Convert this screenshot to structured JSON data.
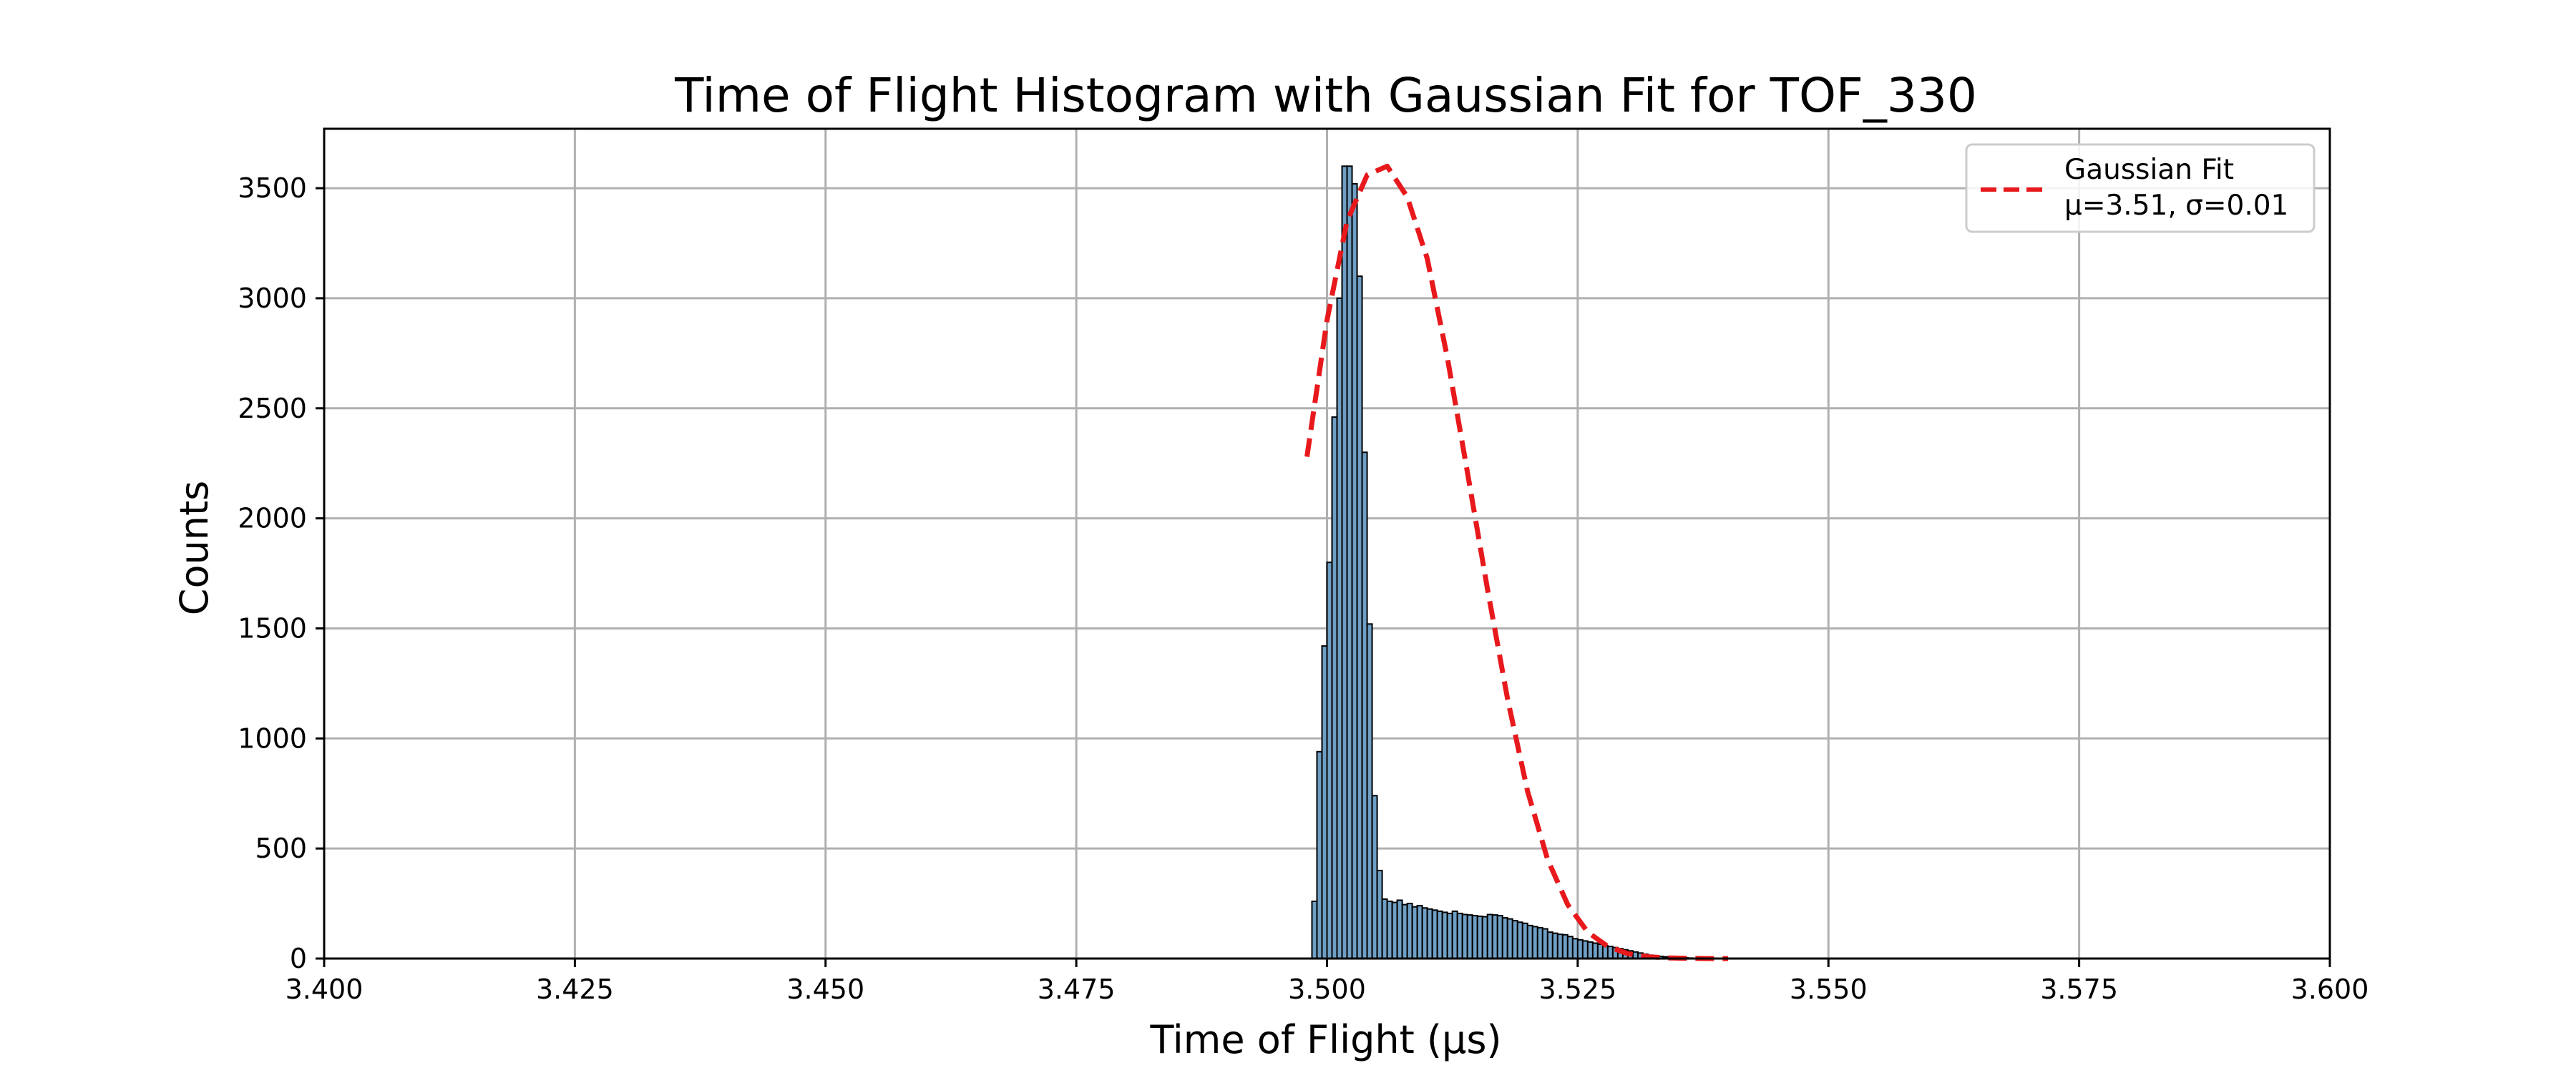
{
  "chart_data": {
    "type": "bar",
    "title": "Time of Flight Histogram with Gaussian Fit for TOF_330",
    "xlabel": "Time of Flight (μs)",
    "ylabel": "Counts",
    "xlim": [
      3.4,
      3.6
    ],
    "ylim": [
      0,
      3770
    ],
    "x_ticks": [
      "3.400",
      "3.425",
      "3.450",
      "3.475",
      "3.500",
      "3.525",
      "3.550",
      "3.575",
      "3.600"
    ],
    "y_ticks": [
      "0",
      "500",
      "1000",
      "1500",
      "2000",
      "2500",
      "3000",
      "3500"
    ],
    "grid": true,
    "legend_position": "top-right",
    "colors": {
      "bar_fill": "#6f9fc4",
      "bar_edge": "#000000",
      "fit_line": "#e8191c",
      "grid": "#b0b0b0"
    },
    "histogram": {
      "bin_width": 0.0005,
      "bin_start": 3.4985,
      "counts": [
        260,
        940,
        1420,
        1800,
        2460,
        3000,
        3600,
        3600,
        3520,
        3100,
        2300,
        1520,
        740,
        400,
        270,
        260,
        255,
        265,
        245,
        250,
        235,
        240,
        230,
        225,
        220,
        215,
        210,
        205,
        215,
        205,
        200,
        198,
        195,
        192,
        190,
        200,
        198,
        195,
        185,
        180,
        172,
        165,
        160,
        150,
        145,
        140,
        135,
        120,
        115,
        110,
        108,
        100,
        90,
        85,
        80,
        75,
        70,
        65,
        58,
        55,
        50,
        45,
        40,
        35,
        30,
        25,
        20,
        15,
        12,
        10,
        8,
        6,
        5,
        4,
        3,
        2,
        1,
        0
      ]
    },
    "series": [
      {
        "name": "Gaussian Fit\nμ=3.51, σ=0.01",
        "type": "line",
        "style": "dashed",
        "x": [
          3.498,
          3.5,
          3.502,
          3.504,
          3.506,
          3.508,
          3.51,
          3.512,
          3.514,
          3.516,
          3.518,
          3.52,
          3.522,
          3.524,
          3.526,
          3.528,
          3.53,
          3.532,
          3.534,
          3.536,
          3.538,
          3.54
        ],
        "y": [
          2280,
          2900,
          3350,
          3560,
          3600,
          3460,
          3180,
          2730,
          2210,
          1680,
          1180,
          760,
          450,
          245,
          120,
          55,
          22,
          8,
          3,
          1,
          0,
          0
        ]
      }
    ]
  }
}
